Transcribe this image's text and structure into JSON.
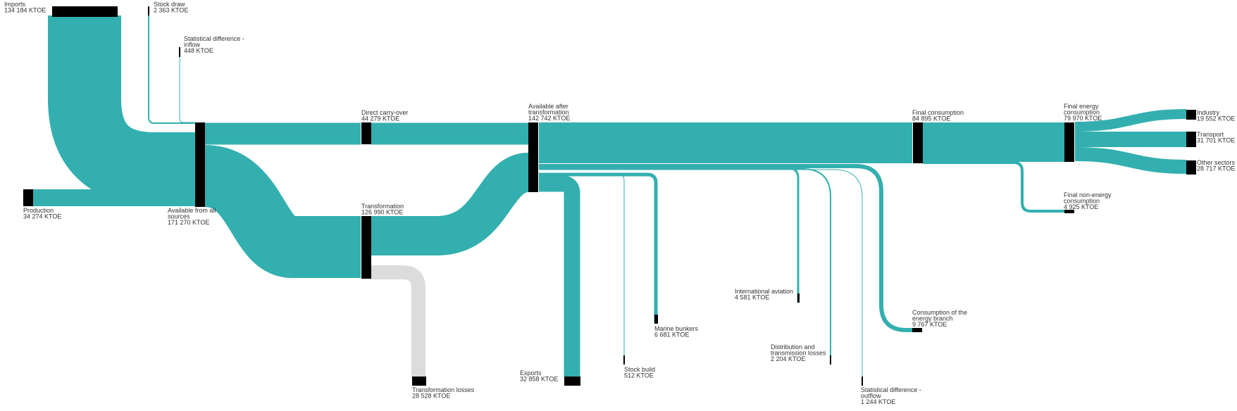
{
  "colors": {
    "flow": "#33AFAF",
    "loss": "#DCDCDC",
    "node": "#000000",
    "text": "#333333"
  },
  "nodes": {
    "imports": {
      "lines": [
        "Imports"
      ],
      "value": "134 184 KTOE"
    },
    "stock_draw": {
      "lines": [
        "Stock draw"
      ],
      "value": "2 363 KTOE"
    },
    "stat_diff_in": {
      "lines": [
        "Statistical difference -",
        "inflow"
      ],
      "value": "448 KTOE"
    },
    "production": {
      "lines": [
        "Production"
      ],
      "value": "34 274 KTOE"
    },
    "available_all": {
      "lines": [
        "Available from all",
        "sources"
      ],
      "value": "171 270 KTOE"
    },
    "direct_carry": {
      "lines": [
        "Direct carry-over"
      ],
      "value": "44 279 KTOE"
    },
    "transformation": {
      "lines": [
        "Transformation"
      ],
      "value": "126 990 KTOE"
    },
    "transform_losses": {
      "lines": [
        "Transformation losses"
      ],
      "value": "28 528 KTOE"
    },
    "available_after": {
      "lines": [
        "Available after",
        "transformation"
      ],
      "value": "142 742 KTOE"
    },
    "exports": {
      "lines": [
        "Exports"
      ],
      "value": "32 858 KTOE"
    },
    "stock_build": {
      "lines": [
        "Stock build"
      ],
      "value": "512 KTOE"
    },
    "marine": {
      "lines": [
        "Marine bunkers"
      ],
      "value": "6 681 KTOE"
    },
    "aviation": {
      "lines": [
        "International aviation"
      ],
      "value": "4 581 KTOE"
    },
    "distribution": {
      "lines": [
        "Distribution and",
        "transmission losses"
      ],
      "value": "2 204 KTOE"
    },
    "stat_diff_out": {
      "lines": [
        "Statistical difference -",
        "outflow"
      ],
      "value": "1 244 KTOE"
    },
    "energy_branch": {
      "lines": [
        "Consumption of the",
        "energy branch"
      ],
      "value": "9 767 KTOE"
    },
    "final_consumption": {
      "lines": [
        "Final consumption"
      ],
      "value": "84 895 KTOE"
    },
    "final_energy": {
      "lines": [
        "Final energy",
        "consumption"
      ],
      "value": "79 970 KTOE"
    },
    "final_non_energy": {
      "lines": [
        "Final non-energy",
        "consumption"
      ],
      "value": "4 925 KTOE"
    },
    "industry": {
      "lines": [
        "Industry"
      ],
      "value": "19 552 KTOE"
    },
    "transport": {
      "lines": [
        "Transport"
      ],
      "value": "31 701 KTOE"
    },
    "other_sectors": {
      "lines": [
        "Other sectors"
      ],
      "value": "28 717 KTOE"
    }
  }
}
